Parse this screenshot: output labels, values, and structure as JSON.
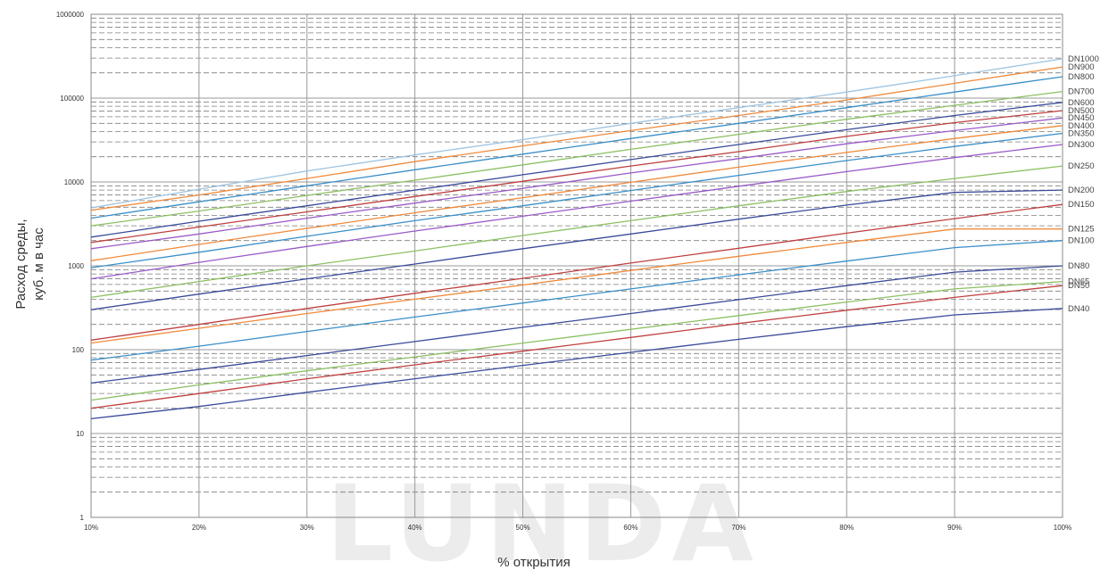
{
  "watermark": "LUNDA",
  "chart_data": {
    "type": "line",
    "title": "",
    "xlabel": "% открытия",
    "ylabel_lines": [
      "Расход среды,",
      "куб. м в час"
    ],
    "x": [
      10,
      20,
      30,
      40,
      50,
      60,
      70,
      80,
      90,
      100
    ],
    "x_tick_labels": [
      "10%",
      "20%",
      "30%",
      "40%",
      "50%",
      "60%",
      "70%",
      "80%",
      "90%",
      "100%"
    ],
    "xlim": [
      10,
      100
    ],
    "y_scale": "log",
    "ylim": [
      1,
      1000000
    ],
    "y_tick_values": [
      1,
      10,
      100,
      1000,
      10000,
      100000,
      1000000
    ],
    "y_tick_labels": [
      "1",
      "10",
      "100",
      "1000",
      "10000",
      "100000",
      "1000000"
    ],
    "grid": {
      "major_vertical": true,
      "major_horizontal": true,
      "minor_horizontal": "dashed"
    },
    "series": [
      {
        "name": "DN1000",
        "color": "#9fc4e0",
        "values": [
          4900,
          8200,
          13500,
          21000,
          32000,
          50000,
          77000,
          118000,
          185000,
          295000
        ]
      },
      {
        "name": "DN900",
        "color": "#f08a3a",
        "values": [
          4600,
          7000,
          11000,
          17500,
          27000,
          41000,
          62000,
          95000,
          150000,
          235000
        ]
      },
      {
        "name": "DN800",
        "color": "#3a8fc8",
        "values": [
          3700,
          5800,
          9000,
          14000,
          21500,
          33000,
          50000,
          77000,
          118000,
          180000
        ]
      },
      {
        "name": "DN700",
        "color": "#8cc063",
        "values": [
          3000,
          4500,
          6900,
          10500,
          16000,
          24500,
          37000,
          56000,
          82000,
          120000
        ]
      },
      {
        "name": "DN600",
        "color": "#3a4a9a",
        "values": [
          2200,
          3400,
          5200,
          8000,
          12200,
          18500,
          28000,
          42000,
          62000,
          89000
        ]
      },
      {
        "name": "DN500",
        "color": "#c04040",
        "values": [
          1900,
          2900,
          4400,
          6700,
          10200,
          15500,
          23000,
          35000,
          51000,
          71000
        ]
      },
      {
        "name": "DN450",
        "color": "#9a5ac8",
        "values": [
          1600,
          2400,
          3700,
          5600,
          8400,
          12800,
          19000,
          28500,
          41000,
          58000
        ]
      },
      {
        "name": "DN400",
        "color": "#f08a3a",
        "values": [
          1150,
          1800,
          2800,
          4300,
          6500,
          9900,
          15000,
          22500,
          33000,
          47000
        ]
      },
      {
        "name": "DN350",
        "color": "#3a8fc8",
        "values": [
          950,
          1450,
          2250,
          3450,
          5200,
          7900,
          12000,
          18000,
          26500,
          38000
        ]
      },
      {
        "name": "DN300",
        "color": "#9a5ac8",
        "values": [
          700,
          1100,
          1700,
          2600,
          3900,
          5900,
          8900,
          13300,
          19500,
          28000
        ]
      },
      {
        "name": "DN250",
        "color": "#8cc063",
        "values": [
          420,
          650,
          1000,
          1500,
          2300,
          3450,
          5200,
          7700,
          11000,
          15500
        ]
      },
      {
        "name": "DN200",
        "color": "#3a4a9a",
        "values": [
          300,
          460,
          700,
          1050,
          1600,
          2400,
          3600,
          5300,
          7500,
          8000
        ]
      },
      {
        "name": "DN150",
        "color": "#c04040",
        "values": [
          130,
          200,
          310,
          470,
          710,
          1080,
          1620,
          2450,
          3650,
          5400
        ]
      },
      {
        "name": "DN125",
        "color": "#f08a3a",
        "values": [
          120,
          180,
          270,
          400,
          590,
          880,
          1300,
          1900,
          2750,
          2750
        ]
      },
      {
        "name": "DN100",
        "color": "#3a8fc8",
        "values": [
          75,
          110,
          165,
          245,
          360,
          530,
          780,
          1140,
          1650,
          2000
        ]
      },
      {
        "name": "DN80",
        "color": "#3a4a9a",
        "values": [
          40,
          58,
          85,
          125,
          185,
          270,
          395,
          580,
          840,
          1000
        ]
      },
      {
        "name": "DN65",
        "color": "#8cc063",
        "values": [
          25,
          38,
          56,
          82,
          120,
          175,
          255,
          370,
          530,
          650
        ]
      },
      {
        "name": "DN50",
        "color": "#c04040",
        "values": [
          20,
          30,
          45,
          66,
          96,
          140,
          205,
          295,
          420,
          580
        ]
      },
      {
        "name": "DN40",
        "color": "#3a4a9a",
        "values": [
          15,
          21,
          31,
          45,
          65,
          93,
          133,
          188,
          260,
          310
        ]
      }
    ]
  }
}
